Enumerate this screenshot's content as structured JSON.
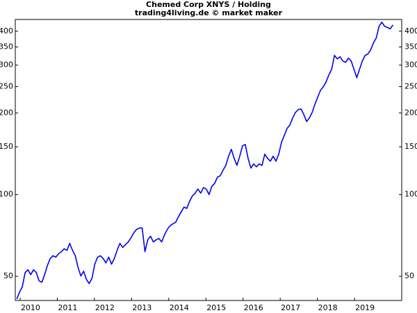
{
  "chart_data": {
    "type": "line",
    "title": "Chemed Corp XNYS / Holding",
    "subtitle": "trading4living.de © market maker",
    "color": "#0000ee",
    "log_scale_y": true,
    "xlim": [
      2009.87,
      2020.27
    ],
    "xticks": [
      2010,
      2011,
      2012,
      2013,
      2014,
      2015,
      2016,
      2017,
      2018,
      2019
    ],
    "ylim": [
      40.7,
      442
    ],
    "yticks": [
      50,
      100,
      150,
      200,
      250,
      300,
      350,
      400
    ],
    "x": [
      2009.91,
      2009.985,
      2010.06,
      2010.135,
      2010.21,
      2010.285,
      2010.36,
      2010.435,
      2010.51,
      2010.585,
      2010.66,
      2010.735,
      2010.81,
      2010.885,
      2010.96,
      2011.035,
      2011.11,
      2011.185,
      2011.26,
      2011.335,
      2011.41,
      2011.485,
      2011.56,
      2011.635,
      2011.71,
      2011.785,
      2011.86,
      2011.935,
      2012.01,
      2012.085,
      2012.16,
      2012.235,
      2012.31,
      2012.385,
      2012.46,
      2012.535,
      2012.61,
      2012.685,
      2012.76,
      2012.835,
      2012.91,
      2012.985,
      2013.06,
      2013.135,
      2013.21,
      2013.285,
      2013.36,
      2013.435,
      2013.51,
      2013.585,
      2013.66,
      2013.735,
      2013.81,
      2013.885,
      2013.96,
      2014.035,
      2014.11,
      2014.185,
      2014.26,
      2014.335,
      2014.41,
      2014.485,
      2014.56,
      2014.635,
      2014.71,
      2014.785,
      2014.86,
      2014.935,
      2015.01,
      2015.085,
      2015.16,
      2015.235,
      2015.31,
      2015.385,
      2015.46,
      2015.535,
      2015.61,
      2015.685,
      2015.76,
      2015.835,
      2015.91,
      2015.985,
      2016.06,
      2016.135,
      2016.21,
      2016.285,
      2016.36,
      2016.435,
      2016.51,
      2016.585,
      2016.66,
      2016.735,
      2016.81,
      2016.885,
      2016.96,
      2017.035,
      2017.11,
      2017.185,
      2017.26,
      2017.335,
      2017.41,
      2017.485,
      2017.56,
      2017.635,
      2017.71,
      2017.785,
      2017.86,
      2017.935,
      2018.01,
      2018.085,
      2018.16,
      2018.235,
      2018.31,
      2018.385,
      2018.46,
      2018.535,
      2018.61,
      2018.685,
      2018.76,
      2018.835,
      2018.91,
      2018.985,
      2019.06,
      2019.135,
      2019.21,
      2019.285,
      2019.36,
      2019.435,
      2019.51,
      2019.585,
      2019.66,
      2019.735,
      2019.81,
      2019.885,
      2019.96,
      2020.035
    ],
    "values": [
      41.2,
      43.7,
      45.8,
      51.6,
      52.8,
      50.7,
      52.8,
      51.6,
      48.1,
      47.5,
      50.7,
      54.8,
      58.1,
      59.5,
      58.8,
      60.5,
      61.6,
      63.1,
      62.3,
      66.1,
      62.3,
      59.5,
      53.8,
      50.1,
      52.2,
      48.6,
      47.0,
      49.2,
      55.4,
      58.8,
      59.5,
      58.1,
      56.0,
      58.8,
      55.4,
      58.1,
      62.3,
      66.1,
      63.8,
      65.4,
      66.9,
      69.3,
      72.3,
      74.4,
      75.3,
      75.3,
      61.6,
      68.1,
      70.2,
      66.9,
      68.1,
      68.9,
      66.9,
      71.0,
      74.4,
      76.7,
      78.0,
      79.0,
      82.8,
      86.3,
      89.9,
      88.9,
      94.3,
      98.8,
      101.2,
      104.8,
      101.2,
      106.1,
      104.8,
      100,
      107.3,
      109.9,
      115.9,
      117.3,
      122.9,
      128.1,
      138.4,
      146.8,
      136.0,
      128.1,
      138.4,
      151.2,
      153.0,
      136.0,
      125.2,
      129.7,
      126.6,
      129.7,
      128.1,
      140.9,
      136.0,
      132.8,
      138.4,
      132.8,
      140.9,
      155.7,
      165.2,
      175.3,
      180.5,
      191.5,
      200.8,
      205.6,
      206.8,
      197.3,
      185.9,
      191.5,
      200.8,
      215.5,
      228.7,
      242.4,
      249.7,
      260.3,
      276.2,
      289.6,
      325.9,
      316.5,
      322.1,
      310.7,
      307.2,
      318.4,
      310.7,
      289.6,
      269.7,
      289.6,
      310.7,
      325.9,
      329.8,
      341.6,
      362.4,
      377.7,
      417.0,
      432.0,
      417.0,
      413.0,
      408.0,
      422
    ]
  }
}
